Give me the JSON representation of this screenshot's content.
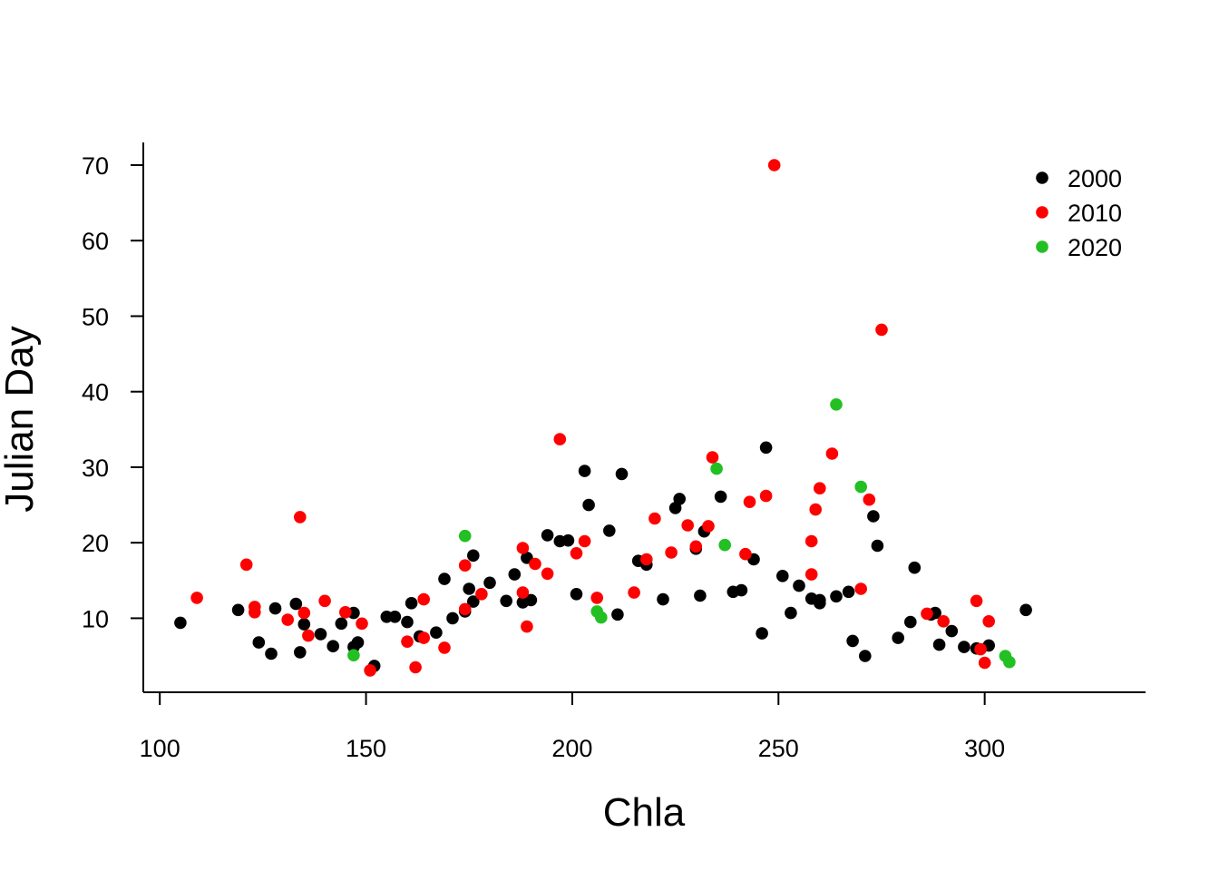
{
  "chart_data": {
    "type": "scatter",
    "xlabel": "Chla",
    "ylabel": "Julian Day",
    "xlim": [
      96,
      339
    ],
    "ylim": [
      0.2,
      73
    ],
    "xticks": [
      100,
      150,
      200,
      250,
      300
    ],
    "yticks": [
      10,
      20,
      30,
      40,
      50,
      60,
      70
    ],
    "grid": false,
    "legend": "top-right",
    "series": [
      {
        "name": "2000",
        "color": "#000000",
        "points": [
          [
            105,
            9.4
          ],
          [
            119,
            11.1
          ],
          [
            124,
            6.8
          ],
          [
            127,
            5.3
          ],
          [
            128,
            11.3
          ],
          [
            133,
            11.9
          ],
          [
            134,
            5.5
          ],
          [
            135,
            9.2
          ],
          [
            139,
            7.9
          ],
          [
            142,
            6.3
          ],
          [
            144,
            9.3
          ],
          [
            147,
            10.7
          ],
          [
            147,
            6.2
          ],
          [
            148,
            6.8
          ],
          [
            152,
            3.7
          ],
          [
            155,
            10.2
          ],
          [
            157,
            10.2
          ],
          [
            160,
            9.5
          ],
          [
            161,
            12
          ],
          [
            163,
            7.6
          ],
          [
            167,
            8.1
          ],
          [
            169,
            15.2
          ],
          [
            171,
            10
          ],
          [
            174,
            10.9
          ],
          [
            175,
            13.9
          ],
          [
            176,
            12.2
          ],
          [
            176,
            18.3
          ],
          [
            180,
            14.7
          ],
          [
            184,
            12.3
          ],
          [
            186,
            15.8
          ],
          [
            188,
            12.1
          ],
          [
            189,
            18
          ],
          [
            190,
            12.4
          ],
          [
            194,
            21
          ],
          [
            197,
            20.2
          ],
          [
            199,
            20.3
          ],
          [
            201,
            13.2
          ],
          [
            203,
            29.5
          ],
          [
            204,
            25
          ],
          [
            209,
            21.6
          ],
          [
            211,
            10.5
          ],
          [
            212,
            29.1
          ],
          [
            216,
            17.6
          ],
          [
            218,
            17.1
          ],
          [
            222,
            12.5
          ],
          [
            225,
            24.6
          ],
          [
            226,
            25.8
          ],
          [
            230,
            19.2
          ],
          [
            231,
            13
          ],
          [
            232,
            21.5
          ],
          [
            236,
            26.1
          ],
          [
            239,
            13.5
          ],
          [
            241,
            13.7
          ],
          [
            244,
            17.8
          ],
          [
            246,
            8
          ],
          [
            247,
            32.6
          ],
          [
            251,
            15.6
          ],
          [
            253,
            10.7
          ],
          [
            255,
            14.3
          ],
          [
            258,
            12.6
          ],
          [
            260,
            12.4
          ],
          [
            260,
            12
          ],
          [
            264,
            12.9
          ],
          [
            267,
            13.5
          ],
          [
            268,
            7
          ],
          [
            271,
            5
          ],
          [
            273,
            23.5
          ],
          [
            274,
            19.6
          ],
          [
            279,
            7.4
          ],
          [
            282,
            9.5
          ],
          [
            283,
            16.7
          ],
          [
            287,
            10.5
          ],
          [
            288,
            10.7
          ],
          [
            289,
            6.5
          ],
          [
            292,
            8.3
          ],
          [
            295,
            6.2
          ],
          [
            298,
            6
          ],
          [
            301,
            6.4
          ],
          [
            310,
            11.1
          ]
        ]
      },
      {
        "name": "2010",
        "color": "#ff0000",
        "points": [
          [
            109,
            12.7
          ],
          [
            121,
            17.1
          ],
          [
            123,
            11.5
          ],
          [
            123,
            10.8
          ],
          [
            131,
            9.8
          ],
          [
            134,
            23.4
          ],
          [
            135,
            10.7
          ],
          [
            136,
            7.7
          ],
          [
            140,
            12.3
          ],
          [
            145,
            10.8
          ],
          [
            149,
            9.3
          ],
          [
            151,
            3.1
          ],
          [
            160,
            6.9
          ],
          [
            162,
            3.5
          ],
          [
            164,
            12.5
          ],
          [
            164,
            7.4
          ],
          [
            169,
            6.1
          ],
          [
            174,
            17
          ],
          [
            174,
            11.2
          ],
          [
            178,
            13.2
          ],
          [
            188,
            19.3
          ],
          [
            188,
            13.4
          ],
          [
            189,
            8.9
          ],
          [
            191,
            17.2
          ],
          [
            194,
            15.9
          ],
          [
            197,
            33.7
          ],
          [
            201,
            18.6
          ],
          [
            203,
            20.2
          ],
          [
            206,
            12.7
          ],
          [
            215,
            13.4
          ],
          [
            218,
            17.8
          ],
          [
            220,
            23.2
          ],
          [
            224,
            18.7
          ],
          [
            228,
            22.3
          ],
          [
            230,
            19.5
          ],
          [
            233,
            22.2
          ],
          [
            234,
            31.3
          ],
          [
            242,
            18.5
          ],
          [
            243,
            25.4
          ],
          [
            247,
            26.2
          ],
          [
            249,
            70
          ],
          [
            258,
            20.2
          ],
          [
            258,
            15.8
          ],
          [
            259,
            24.4
          ],
          [
            260,
            27.2
          ],
          [
            263,
            31.8
          ],
          [
            270,
            13.9
          ],
          [
            272,
            25.7
          ],
          [
            275,
            48.2
          ],
          [
            286,
            10.6
          ],
          [
            290,
            9.6
          ],
          [
            298,
            12.3
          ],
          [
            299,
            5.9
          ],
          [
            300,
            4.1
          ],
          [
            301,
            9.6
          ]
        ]
      },
      {
        "name": "2020",
        "color": "#22c022",
        "points": [
          [
            147,
            5.1
          ],
          [
            174,
            20.9
          ],
          [
            206,
            10.9
          ],
          [
            207,
            10.1
          ],
          [
            235,
            29.8
          ],
          [
            237,
            19.7
          ],
          [
            264,
            38.3
          ],
          [
            270,
            27.4
          ],
          [
            305,
            5
          ],
          [
            306,
            4.2
          ]
        ]
      }
    ]
  }
}
